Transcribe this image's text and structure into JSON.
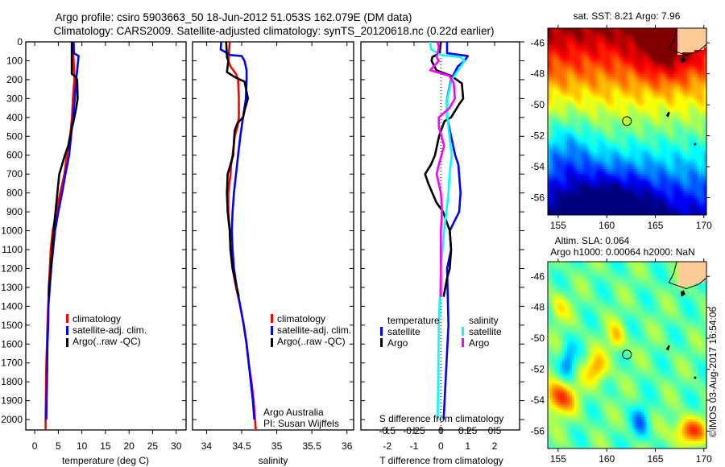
{
  "header": {
    "title_line1": "Argo profile: csiro 5903663_50 18-Jun-2012 51.053S 162.079E (DM data)",
    "title_line2": "Climatology: CARS2009. Satellite-adjusted climatology: synTS_20120618.nc (0.22d earlier)"
  },
  "colors": {
    "climatology": "#ff0000",
    "satellite": "#0000ff",
    "argo": "#000000",
    "sal_satellite": "#00ffff",
    "sal_argo": "#ff00ff",
    "land": "#ffcc99"
  },
  "depth_axis": {
    "ticks": [
      0,
      100,
      200,
      300,
      400,
      500,
      600,
      700,
      800,
      900,
      1000,
      1100,
      1200,
      1300,
      1400,
      1500,
      1600,
      1700,
      1800,
      1900,
      2000
    ],
    "range": [
      0,
      2055
    ]
  },
  "credits": {
    "line1": "Argo Australia",
    "line2": "PI: Susan Wijffels",
    "imos": "©IMOS 03-Aug-2017 16:54:06"
  },
  "chart_data": [
    {
      "type": "line",
      "id": "temperature",
      "xlabel": "temperature (deg C)",
      "ylabel": "depth",
      "xlim": [
        -1.9,
        32.1
      ],
      "xticks": [
        0,
        5,
        10,
        15,
        20,
        25,
        30
      ],
      "legend": [
        "climatology",
        "satellite-adj. clim.",
        "Argo(..raw -QC)"
      ],
      "legend_placement": "lower-middle",
      "series": [
        {
          "name": "climatology",
          "color": "#ff0000",
          "depth": [
            0,
            100,
            200,
            300,
            400,
            500,
            600,
            700,
            800,
            900,
            1000,
            1100,
            1200,
            1300,
            1400,
            1500,
            1600,
            1700,
            1800,
            1900,
            2000,
            2055
          ],
          "values": [
            8.0,
            8.25,
            8.4,
            8.1,
            7.9,
            7.5,
            6.8,
            6.3,
            5.4,
            4.6,
            3.8,
            3.4,
            3.2,
            3.0,
            2.85,
            2.7,
            2.6,
            2.45,
            2.4,
            2.35,
            2.3,
            2.3
          ]
        },
        {
          "name": "satellite-adj. clim.",
          "color": "#0000ff",
          "depth": [
            0,
            60,
            75,
            100,
            200,
            300,
            400,
            500,
            600,
            700,
            800,
            900,
            1000,
            1100,
            1200,
            1300,
            1400,
            1500,
            1600,
            1700,
            1800,
            1900,
            2000
          ],
          "values": [
            8.25,
            8.3,
            9.3,
            9.2,
            8.8,
            8.5,
            8.1,
            7.7,
            7.3,
            6.5,
            5.8,
            5.0,
            4.3,
            3.9,
            3.5,
            3.2,
            2.9,
            2.85,
            2.7,
            2.65,
            2.6,
            2.5,
            2.45
          ]
        },
        {
          "name": "Argo(..raw -QC)",
          "color": "#000000",
          "depth": [
            0,
            100,
            170,
            180,
            200,
            300,
            350,
            400,
            500,
            550,
            600,
            650,
            700,
            800,
            900,
            1000,
            1100,
            1200,
            1300,
            1350
          ],
          "values": [
            7.85,
            7.85,
            7.85,
            8.5,
            9.0,
            9.1,
            8.8,
            8.4,
            7.5,
            7.1,
            6.4,
            5.8,
            5.2,
            4.8,
            4.4,
            4.0,
            3.7,
            3.4,
            3.0,
            3.0
          ]
        }
      ]
    },
    {
      "type": "line",
      "id": "salinity",
      "xlabel": "salinity",
      "ylabel": "depth",
      "xlim": [
        33.8,
        36.095
      ],
      "xticks": [
        34,
        34.5,
        35,
        35.5,
        36
      ],
      "legend": [
        "climatology",
        "satellite-adj. clim.",
        "Argo(..raw -QC)"
      ],
      "legend_placement": "lower-middle",
      "series": [
        {
          "name": "climatology",
          "color": "#ff0000",
          "depth": [
            0,
            100,
            130,
            170,
            200,
            300,
            400,
            450,
            500,
            600,
            650,
            700,
            800,
            900,
            1000,
            1100,
            1200,
            1300,
            1400,
            1500,
            1600,
            1700,
            1800,
            1900,
            2000,
            2055
          ],
          "values": [
            34.33,
            34.31,
            34.34,
            34.42,
            34.45,
            34.46,
            34.46,
            34.44,
            34.4,
            34.37,
            34.35,
            34.34,
            34.31,
            34.31,
            34.33,
            34.34,
            34.37,
            34.42,
            34.48,
            34.53,
            34.57,
            34.6,
            34.64,
            34.67,
            34.69,
            34.7
          ]
        },
        {
          "name": "satellite-adj. clim.",
          "color": "#0000ff",
          "depth": [
            0,
            40,
            70,
            75,
            100,
            150,
            200,
            300,
            400,
            500,
            600,
            700,
            800,
            900,
            1000,
            1100,
            1200,
            1300,
            1400,
            1500,
            1600,
            1700,
            1800,
            1900,
            2000
          ],
          "values": [
            34.21,
            34.2,
            34.34,
            34.5,
            34.54,
            34.57,
            34.57,
            34.56,
            34.52,
            34.48,
            34.45,
            34.42,
            34.39,
            34.37,
            34.36,
            34.37,
            34.39,
            34.43,
            34.48,
            34.53,
            34.57,
            34.6,
            34.63,
            34.66,
            34.68
          ]
        },
        {
          "name": "Argo(..raw -QC)",
          "color": "#000000",
          "depth": [
            0,
            80,
            100,
            130,
            160,
            190,
            210,
            300,
            350,
            400,
            430,
            470,
            600,
            650,
            700,
            800,
            900,
            1000,
            1100,
            1200,
            1300,
            1350
          ],
          "values": [
            34.28,
            34.29,
            34.31,
            34.3,
            34.29,
            34.42,
            34.54,
            34.59,
            34.55,
            34.52,
            34.44,
            34.4,
            34.38,
            34.34,
            34.3,
            34.29,
            34.3,
            34.33,
            34.34,
            34.37,
            34.43,
            34.46
          ]
        }
      ]
    },
    {
      "type": "line",
      "id": "difference",
      "xlabel": "T difference from climatology",
      "x2label": "S difference from climatology",
      "xlim": [
        -2.98,
        2.93
      ],
      "xticks": [
        -2,
        -1,
        0,
        1,
        2
      ],
      "x2lim": [
        -0.745,
        0.7325
      ],
      "x2ticks": [
        -0.5,
        -0.25,
        0,
        0.25,
        0.5
      ],
      "legend_titles": [
        "temperature",
        "salinity"
      ],
      "legend": [
        "satellite",
        "Argo",
        "satellite",
        "Argo"
      ],
      "series": [
        {
          "name": "temperature satellite",
          "axis": "T",
          "color": "#0000ff",
          "depth": [
            0,
            60,
            75,
            100,
            130,
            200,
            300,
            400,
            500,
            600,
            650,
            800,
            900,
            1000,
            1100,
            1200,
            1500,
            2000
          ],
          "values": [
            0.23,
            0.23,
            1.0,
            0.88,
            0.63,
            0.38,
            0.23,
            0.23,
            0.38,
            0.53,
            0.65,
            0.73,
            0.68,
            0.33,
            0.38,
            0.23,
            0.28,
            0.1
          ]
        },
        {
          "name": "temperature Argo",
          "axis": "T",
          "color": "#000000",
          "depth": [
            0,
            60,
            80,
            100,
            150,
            180,
            220,
            300,
            330,
            400,
            420,
            500,
            600,
            650,
            700,
            750,
            800,
            850,
            900,
            1000,
            1100,
            1200,
            1250,
            1350
          ],
          "values": [
            0.0,
            -0.05,
            -0.32,
            -0.35,
            -0.17,
            0.38,
            0.78,
            0.83,
            0.68,
            0.38,
            0.13,
            -0.07,
            -0.22,
            -0.37,
            -0.59,
            -0.47,
            -0.32,
            -0.17,
            0.08,
            0.33,
            0.38,
            0.33,
            0.23,
            0.1
          ]
        },
        {
          "name": "salinity satellite",
          "axis": "S",
          "color": "#00ffff",
          "depth": [
            0,
            40,
            70,
            80,
            100,
            150,
            200,
            300,
            400,
            500,
            600,
            700,
            800,
            900,
            1000,
            1200,
            1500,
            2000
          ],
          "values": [
            -0.1,
            -0.09,
            0.0,
            0.18,
            0.22,
            0.16,
            0.1,
            0.06,
            0.06,
            0.08,
            0.1,
            0.08,
            0.07,
            0.05,
            0.03,
            0.0,
            -0.02,
            -0.03
          ]
        },
        {
          "name": "salinity Argo",
          "axis": "S",
          "color": "#ff00ff",
          "depth": [
            0,
            30,
            80,
            100,
            150,
            180,
            220,
            300,
            350,
            400,
            450,
            550,
            650,
            700,
            800,
            900,
            1000,
            1200,
            1350
          ],
          "values": [
            -0.03,
            -0.02,
            -0.04,
            -0.02,
            -0.1,
            0.08,
            0.12,
            0.13,
            0.08,
            -0.02,
            -0.02,
            0.03,
            -0.02,
            -0.04,
            0.0,
            0.01,
            0.0,
            0.0,
            0.0
          ]
        }
      ]
    },
    {
      "type": "heatmap",
      "id": "sst-map",
      "title": "sat. SST: 8.21  Argo: 7.96",
      "xlim": [
        153.93,
        170.27
      ],
      "ylim": [
        -57.12,
        -45.05
      ],
      "xticks": [
        155,
        160,
        165,
        170
      ],
      "yticks": [
        -46,
        -48,
        -50,
        -52,
        -54,
        -56
      ],
      "profile_location": {
        "lon": 162.079,
        "lat": -51.053
      }
    },
    {
      "type": "heatmap",
      "id": "sla-map",
      "title": "Altim. SLA: 0.064",
      "subtitle": "Argo h1000: 0.00064 h2000: NaN",
      "xlim": [
        153.93,
        170.27
      ],
      "ylim": [
        -57.12,
        -45.05
      ],
      "xticks": [
        155,
        160,
        165,
        170
      ],
      "yticks": [
        -46,
        -48,
        -50,
        -52,
        -54,
        -56
      ],
      "profile_location": {
        "lon": 162.079,
        "lat": -51.053
      }
    }
  ]
}
